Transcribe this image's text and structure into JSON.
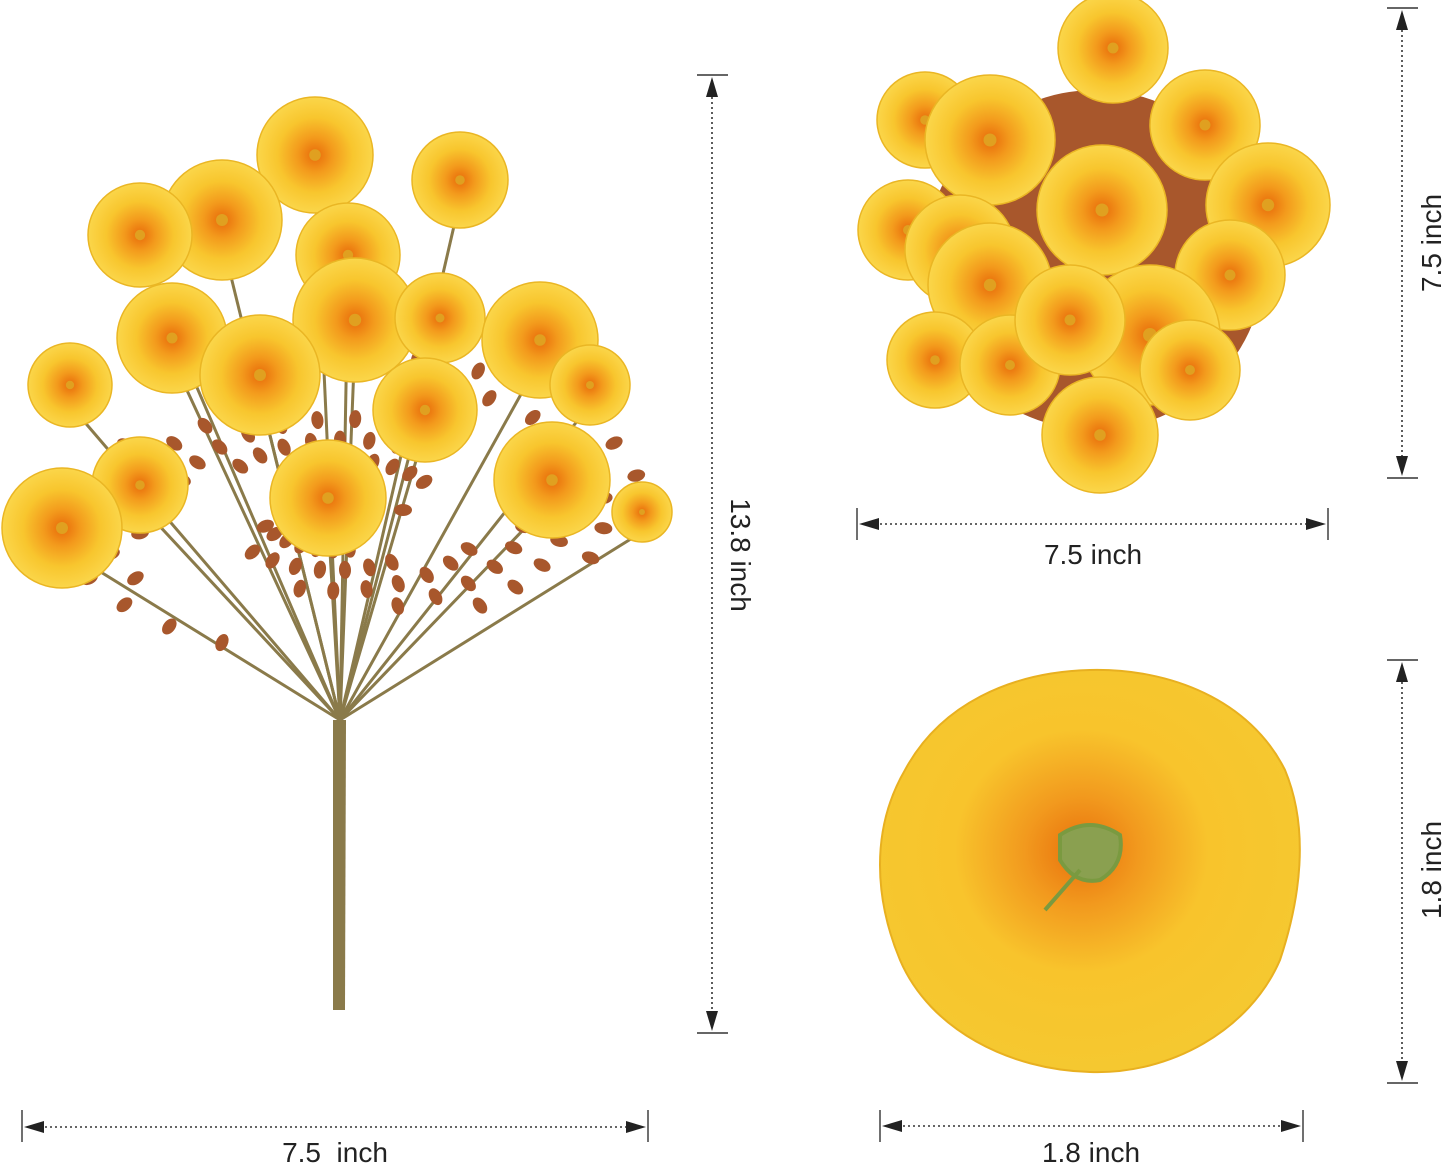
{
  "image": {
    "subject": "artificial yellow morning glory flower bundle",
    "colors": {
      "petal": "#f7c52b",
      "petal_light": "#fbd94a",
      "center": "#f07a10",
      "leaf": "#a8572c",
      "stem": "#8a7a4a"
    }
  },
  "dimensions": {
    "bundle_width": "7.5  inch",
    "bundle_height": "13.8 inch",
    "top_view_height": "7.5 inch",
    "top_view_width": "7.5 inch",
    "flower_height": "1.8 inch",
    "flower_width": "1.8 inch"
  }
}
